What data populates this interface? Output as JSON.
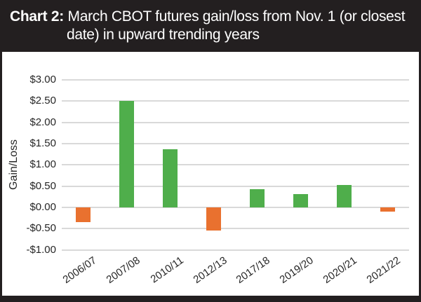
{
  "header": {
    "label": "Chart 2:",
    "title_line1": "March CBOT futures gain/loss from Nov. 1 (or closest",
    "title_line2": "date) in upward trending years"
  },
  "chart_data": {
    "type": "bar",
    "title": "March CBOT futures gain/loss from Nov. 1 (or closest date) in upward trending years",
    "categories": [
      "2006/07",
      "2007/08",
      "2010/11",
      "2012/13",
      "2017/18",
      "2019/20",
      "2020/21",
      "2021/22"
    ],
    "values": [
      -0.35,
      2.5,
      1.37,
      -0.55,
      0.43,
      0.31,
      0.52,
      -0.1
    ],
    "xlabel": "",
    "ylabel": "Gain/Loss",
    "ylim": [
      -1.0,
      3.0
    ],
    "ytick_step": 0.5,
    "ytick_labels": [
      "$3.00",
      "$2.50",
      "$2.00",
      "$1.50",
      "$1.00",
      "$0.50",
      "$0.00",
      "-$0.50",
      "-$1.00"
    ],
    "grid": true,
    "legend": "none",
    "colors": {
      "positive_bar": "#4fae4b",
      "negative_bar": "#e9712f",
      "gridline": "#d9d9d9",
      "axis_text": "#262626",
      "header_bg": "#231f20",
      "header_text": "#ffffff"
    }
  }
}
